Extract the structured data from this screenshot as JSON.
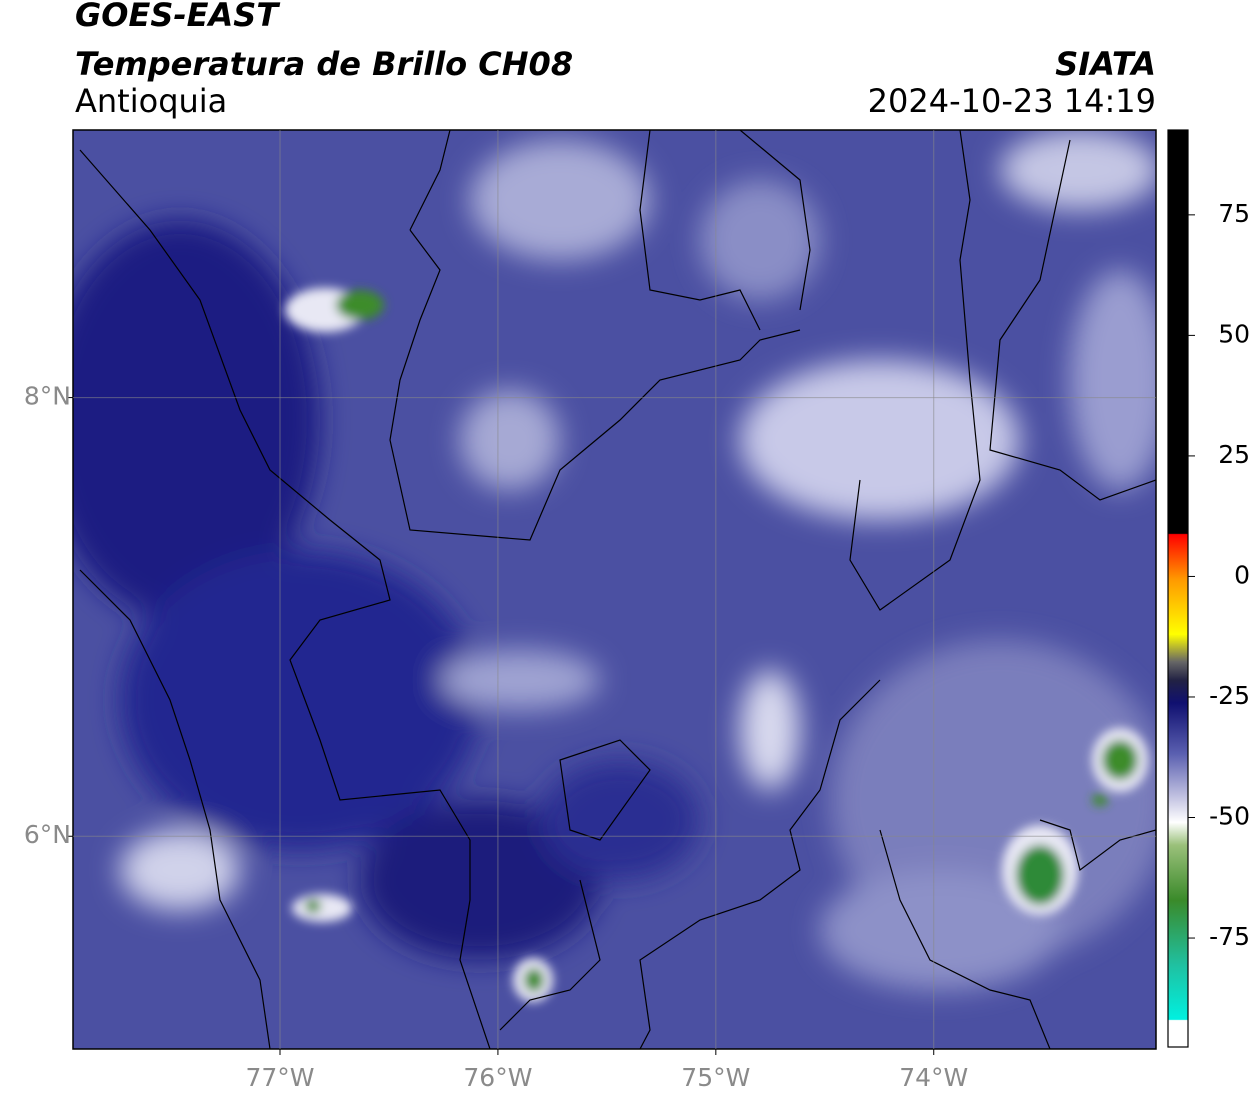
{
  "header": {
    "title": "GOES-EAST",
    "product": "Temperatura de Brillo CH08",
    "region": "Antioquia",
    "source": "SIATA",
    "timestamp": "2024-10-23 14:19"
  },
  "map": {
    "xlim": [
      -77.95,
      -72.98
    ],
    "ylim": [
      5.03,
      9.22
    ],
    "grid": true,
    "xticks": [
      {
        "value": -77,
        "label": "77°W"
      },
      {
        "value": -76,
        "label": "76°W"
      },
      {
        "value": -75,
        "label": "75°W"
      },
      {
        "value": -74,
        "label": "74°W"
      }
    ],
    "yticks": [
      {
        "value": 8,
        "label": "8°N"
      },
      {
        "value": 6,
        "label": "6°N"
      }
    ]
  },
  "colorbar": {
    "lim": [
      -97.6,
      92.6
    ],
    "ticks": [
      75,
      50,
      25,
      0,
      -25,
      -50,
      -75
    ]
  }
}
